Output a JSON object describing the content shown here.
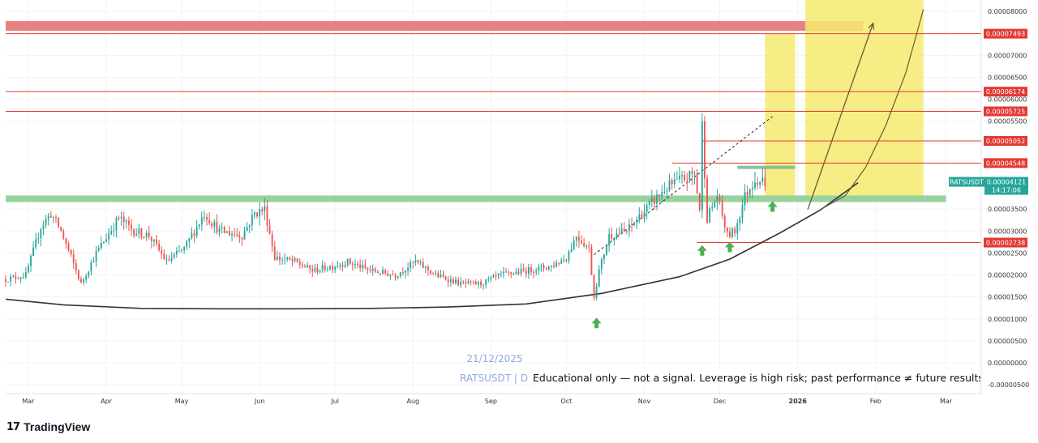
{
  "chart_data": {
    "type": "candlestick",
    "symbol": "RATSUSDT",
    "interval": "D",
    "watermark_date": "21/12/2025",
    "watermark_symbol": "RATSUSDT | D",
    "x_axis": {
      "start": "2025-02-20",
      "end": "2026-03-15",
      "month_labels": [
        "Mar",
        "Apr",
        "May",
        "Jun",
        "Jul",
        "Aug",
        "Sep",
        "Oct",
        "Nov",
        "Dec",
        "2026",
        "Feb",
        "Mar"
      ],
      "month_dates": [
        "2025-03-01",
        "2025-04-01",
        "2025-05-01",
        "2025-06-01",
        "2025-07-01",
        "2025-08-01",
        "2025-09-01",
        "2025-10-01",
        "2025-11-01",
        "2025-12-01",
        "2026-01-01",
        "2026-02-01",
        "2026-03-01"
      ]
    },
    "y_axis": {
      "min": -7e-06,
      "max": 8.26e-05,
      "ticks": [
        "0.00008000",
        "0.00007000",
        "0.00006500",
        "0.00006000",
        "0.00005500",
        "0.00003500",
        "0.00003000",
        "0.00002500",
        "0.00002000",
        "0.00001500",
        "0.00001000",
        "0.00000500",
        "0.00000000",
        "-0.00000500"
      ],
      "tick_values": [
        8e-05,
        7e-05,
        6.5e-05,
        6e-05,
        5.5e-05,
        3.5e-05,
        3e-05,
        2.5e-05,
        2e-05,
        1.5e-05,
        1e-05,
        5e-06,
        0.0,
        -5e-06
      ]
    },
    "price_levels": [
      {
        "label": "0.00007493",
        "value": 7.493e-05
      },
      {
        "label": "0.00006174",
        "value": 6.174e-05
      },
      {
        "label": "0.00005725",
        "value": 5.725e-05
      },
      {
        "label": "0.00005052",
        "value": 5.052e-05
      },
      {
        "label": "0.00004548",
        "value": 4.548e-05
      },
      {
        "label": "0.00002738",
        "value": 2.738e-05
      }
    ],
    "current_price": {
      "symbol": "RATSUSDT",
      "price": "0.00004121",
      "countdown": "14:17:06",
      "value": 4.121e-05
    },
    "resistance_zone": {
      "low": 7.56e-05,
      "high": 7.78e-05,
      "from": "2025-02-20",
      "to": "2026-01-27",
      "color": "#e57373"
    },
    "support_zone": {
      "low": 3.66e-05,
      "high": 3.81e-05,
      "from": "2025-02-20",
      "to": "2026-03-01",
      "color": "#81c784"
    },
    "highlight_zones": [
      {
        "from": "2025-12-19",
        "to": "2025-12-31",
        "low": 3.81e-05,
        "high": 7.49e-05,
        "color": "#f5ea6e"
      },
      {
        "from": "2026-01-04",
        "to": "2026-02-20",
        "low": 3.81e-05,
        "high": 8.26e-05,
        "color": "#f5ea6e"
      }
    ],
    "long_term_curve": [
      [
        "2025-02-20",
        1.45e-05
      ],
      [
        "2025-03-15",
        1.32e-05
      ],
      [
        "2025-04-15",
        1.24e-05
      ],
      [
        "2025-05-15",
        1.23e-05
      ],
      [
        "2025-06-15",
        1.23e-05
      ],
      [
        "2025-07-15",
        1.24e-05
      ],
      [
        "2025-08-15",
        1.27e-05
      ],
      [
        "2025-09-15",
        1.34e-05
      ],
      [
        "2025-10-15",
        1.58e-05
      ],
      [
        "2025-11-15",
        1.96e-05
      ],
      [
        "2025-12-05",
        2.36e-05
      ],
      [
        "2025-12-25",
        2.96e-05
      ],
      [
        "2026-01-10",
        3.48e-05
      ],
      [
        "2026-01-25",
        4.1e-05
      ]
    ],
    "projection_curve": [
      [
        "2026-01-10",
        3.49e-05
      ],
      [
        "2026-01-20",
        3.81e-05
      ],
      [
        "2026-01-28",
        4.45e-05
      ],
      [
        "2026-02-05",
        5.4e-05
      ],
      [
        "2026-02-13",
        6.6e-05
      ],
      [
        "2026-02-20",
        8.05e-05
      ]
    ],
    "projection_arrow": {
      "from": [
        "2026-01-05",
        3.49e-05
      ],
      "to": [
        "2026-01-31",
        7.73e-05
      ]
    },
    "trend_line": {
      "from": [
        "2025-10-12",
        2.46e-05
      ],
      "to": [
        "2025-12-22",
        5.61e-05
      ]
    },
    "triangle_box": {
      "from": "2025-12-08",
      "to": "2025-12-31",
      "value": 4.45e-05
    },
    "level_2738_start": "2025-11-22",
    "level_4548_start": "2025-11-12",
    "level_5052_start": "2025-11-24",
    "buy_signals": [
      {
        "date": "2025-10-13",
        "value": 9e-06
      },
      {
        "date": "2025-11-24",
        "value": 2.55e-05
      },
      {
        "date": "2025-12-05",
        "value": 2.63e-05
      },
      {
        "date": "2025-12-22",
        "value": 3.55e-05
      }
    ],
    "colors": {
      "up": "#26a69a",
      "down": "#ef5350",
      "grid": "#f0f3fa",
      "curve": "#333333",
      "level_line": "#e53935",
      "arrow": "#6b5a2e"
    },
    "anchors": [
      [
        "2025-02-20",
        1.9e-05
      ],
      [
        "2025-02-28",
        2e-05
      ],
      [
        "2025-03-06",
        3.1e-05
      ],
      [
        "2025-03-10",
        3.4e-05
      ],
      [
        "2025-03-14",
        3e-05
      ],
      [
        "2025-03-22",
        1.8e-05
      ],
      [
        "2025-03-28",
        2.5e-05
      ],
      [
        "2025-04-06",
        3.3e-05
      ],
      [
        "2025-04-12",
        3e-05
      ],
      [
        "2025-04-18",
        2.9e-05
      ],
      [
        "2025-04-25",
        2.3e-05
      ],
      [
        "2025-05-02",
        2.6e-05
      ],
      [
        "2025-05-10",
        3.4e-05
      ],
      [
        "2025-05-16",
        3e-05
      ],
      [
        "2025-05-25",
        2.9e-05
      ],
      [
        "2025-05-30",
        3.4e-05
      ],
      [
        "2025-06-03",
        3.5e-05
      ],
      [
        "2025-06-07",
        2.4e-05
      ],
      [
        "2025-06-15",
        2.3e-05
      ],
      [
        "2025-06-22",
        2.1e-05
      ],
      [
        "2025-06-30",
        2.2e-05
      ],
      [
        "2025-07-06",
        2.3e-05
      ],
      [
        "2025-07-15",
        2.1e-05
      ],
      [
        "2025-07-25",
        2e-05
      ],
      [
        "2025-08-02",
        2.3e-05
      ],
      [
        "2025-08-10",
        2e-05
      ],
      [
        "2025-08-20",
        1.8e-05
      ],
      [
        "2025-08-28",
        1.8e-05
      ],
      [
        "2025-09-05",
        2e-05
      ],
      [
        "2025-09-15",
        2.1e-05
      ],
      [
        "2025-09-25",
        2.2e-05
      ],
      [
        "2025-10-01",
        2.4e-05
      ],
      [
        "2025-10-05",
        2.9e-05
      ],
      [
        "2025-10-10",
        2.6e-05
      ],
      [
        "2025-10-12",
        1.5e-05
      ],
      [
        "2025-10-14",
        2.1e-05
      ],
      [
        "2025-10-18",
        2.9e-05
      ],
      [
        "2025-10-25",
        3e-05
      ],
      [
        "2025-10-31",
        3.4e-05
      ],
      [
        "2025-11-05",
        3.7e-05
      ],
      [
        "2025-11-10",
        4e-05
      ],
      [
        "2025-11-17",
        4.2e-05
      ],
      [
        "2025-11-21",
        4.3e-05
      ],
      [
        "2025-11-23",
        3.5e-05
      ],
      [
        "2025-11-24",
        5.4e-05
      ],
      [
        "2025-11-26",
        3.3e-05
      ],
      [
        "2025-11-30",
        3.8e-05
      ],
      [
        "2025-12-04",
        2.9e-05
      ],
      [
        "2025-12-07",
        3e-05
      ],
      [
        "2025-12-11",
        3.8e-05
      ],
      [
        "2025-12-15",
        4.2e-05
      ],
      [
        "2025-12-19",
        4.12e-05
      ]
    ]
  },
  "disclaimer": "Educational only — not a signal. Leverage is high risk; past performance ≠ future results",
  "footer": {
    "brand": "TradingView",
    "logo_mark": "17"
  }
}
